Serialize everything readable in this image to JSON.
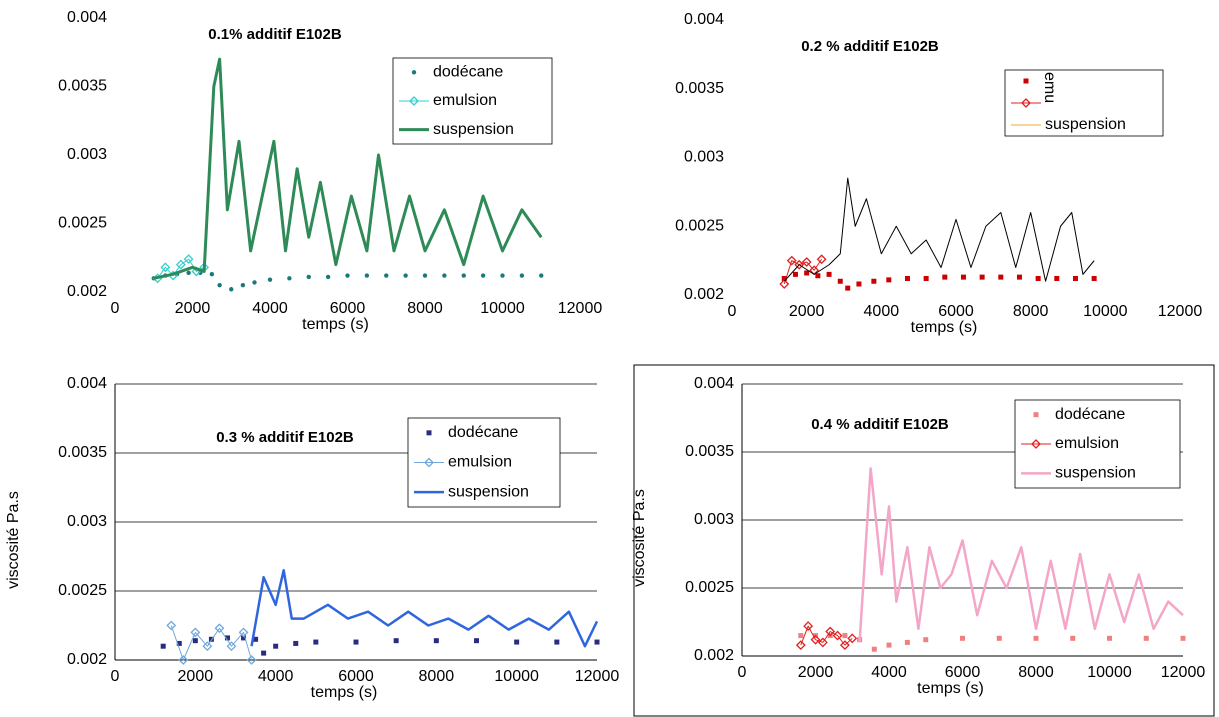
{
  "chart_data": [
    {
      "type": "line",
      "title": "0.1% additif E102B",
      "xlabel": "temps (s)",
      "xlim": [
        0,
        12000
      ],
      "xticks": [
        0,
        2000,
        4000,
        6000,
        8000,
        10000,
        12000
      ],
      "ylim": [
        0.002,
        0.004
      ],
      "yticks": [
        0.002,
        0.0025,
        0.003,
        0.0035,
        0.004
      ],
      "grid": false,
      "series": [
        {
          "name": "dodécane",
          "color": "#1a7a7a",
          "marker": "circle",
          "line": false,
          "x": [
            1000,
            1300,
            1600,
            1900,
            2200,
            2500,
            2700,
            3000,
            3300,
            3600,
            4000,
            4500,
            5000,
            5500,
            6000,
            6500,
            7000,
            7500,
            8000,
            8500,
            9000,
            9500,
            10000,
            10500,
            11000
          ],
          "values": [
            0.0021,
            0.00212,
            0.00213,
            0.00214,
            0.00214,
            0.00213,
            0.00205,
            0.00202,
            0.00205,
            0.00207,
            0.00209,
            0.0021,
            0.00211,
            0.00211,
            0.00212,
            0.00212,
            0.00212,
            0.00212,
            0.00212,
            0.00212,
            0.00212,
            0.00212,
            0.00212,
            0.00212,
            0.00212
          ]
        },
        {
          "name": "emulsion",
          "color": "#33cccc",
          "marker": "diamond",
          "line": true,
          "x": [
            1100,
            1300,
            1500,
            1700,
            1900,
            2100,
            2300
          ],
          "values": [
            0.0021,
            0.00218,
            0.00212,
            0.0022,
            0.00224,
            0.00215,
            0.00218
          ]
        },
        {
          "name": "suspension",
          "color": "#2e8b57",
          "marker": "none",
          "line": true,
          "width": 3,
          "x": [
            1000,
            1500,
            2000,
            2300,
            2550,
            2700,
            2900,
            3200,
            3500,
            3800,
            4100,
            4400,
            4700,
            5000,
            5300,
            5700,
            6100,
            6500,
            6800,
            7200,
            7600,
            8000,
            8500,
            9000,
            9500,
            10000,
            10500,
            11000
          ],
          "values": [
            0.0021,
            0.00213,
            0.00218,
            0.00215,
            0.0035,
            0.0037,
            0.0026,
            0.0031,
            0.0023,
            0.0027,
            0.0031,
            0.0023,
            0.0029,
            0.0024,
            0.0028,
            0.0022,
            0.0027,
            0.0023,
            0.003,
            0.0023,
            0.0027,
            0.0023,
            0.0026,
            0.0022,
            0.0027,
            0.0023,
            0.0026,
            0.0024
          ]
        }
      ]
    },
    {
      "type": "line",
      "title": "0.2 % additif E102B",
      "xlabel": "temps (s)",
      "legend_rotated": true,
      "xlim": [
        0,
        12000
      ],
      "xticks": [
        0,
        2000,
        4000,
        6000,
        8000,
        10000,
        12000
      ],
      "ylim": [
        0.002,
        0.004
      ],
      "yticks": [
        0.002,
        0.0025,
        0.003,
        0.0035,
        0.004
      ],
      "grid": false,
      "series": [
        {
          "name": "emu",
          "color": "#cc0000",
          "marker": "square",
          "line": false,
          "x": [
            1400,
            1700,
            2000,
            2300,
            2600,
            2900,
            3100,
            3400,
            3800,
            4200,
            4700,
            5200,
            5700,
            6200,
            6700,
            7200,
            7700,
            8200,
            8700,
            9200,
            9700
          ],
          "values": [
            0.00212,
            0.00215,
            0.00216,
            0.00214,
            0.00215,
            0.0021,
            0.00205,
            0.00208,
            0.0021,
            0.00211,
            0.00212,
            0.00212,
            0.00213,
            0.00213,
            0.00213,
            0.00213,
            0.00213,
            0.00212,
            0.00212,
            0.00212,
            0.00212
          ]
        },
        {
          "color": "#e02020",
          "marker": "diamond",
          "line": true,
          "x": [
            1400,
            1600,
            1800,
            2000,
            2200,
            2400
          ],
          "values": [
            0.00208,
            0.00225,
            0.00222,
            0.00224,
            0.00218,
            0.00226
          ]
        },
        {
          "name": "suspension",
          "color": "#000000",
          "legend_color": "#f0a830",
          "marker": "none",
          "line": true,
          "width": 1,
          "x": [
            1400,
            1800,
            2200,
            2600,
            2900,
            3100,
            3300,
            3600,
            4000,
            4400,
            4800,
            5200,
            5600,
            6000,
            6400,
            6800,
            7200,
            7600,
            8000,
            8400,
            8800,
            9100,
            9400,
            9700
          ],
          "values": [
            0.0021,
            0.00222,
            0.00215,
            0.00222,
            0.0023,
            0.00285,
            0.0025,
            0.0027,
            0.0023,
            0.0025,
            0.0023,
            0.0024,
            0.0022,
            0.00255,
            0.0022,
            0.0025,
            0.0026,
            0.0022,
            0.0026,
            0.0021,
            0.0025,
            0.0026,
            0.00215,
            0.00225
          ]
        }
      ]
    },
    {
      "type": "line",
      "title": "0.3 % additif E102B",
      "xlabel": "temps (s)",
      "ylabel": "viscosité Pa.s",
      "xlim": [
        0,
        12000
      ],
      "xticks": [
        0,
        2000,
        4000,
        6000,
        8000,
        10000,
        12000
      ],
      "ylim": [
        0.002,
        0.004
      ],
      "yticks": [
        0.002,
        0.0025,
        0.003,
        0.0035,
        0.004
      ],
      "grid": true,
      "series": [
        {
          "name": "dodécane",
          "color": "#2b2b80",
          "marker": "square",
          "line": false,
          "x": [
            1200,
            1600,
            2000,
            2400,
            2800,
            3200,
            3500,
            3700,
            4000,
            4500,
            5000,
            6000,
            7000,
            8000,
            9000,
            10000,
            11000,
            12000
          ],
          "values": [
            0.0021,
            0.00212,
            0.00214,
            0.00215,
            0.00216,
            0.00216,
            0.00215,
            0.00205,
            0.0021,
            0.00212,
            0.00213,
            0.00213,
            0.00214,
            0.00214,
            0.00214,
            0.00213,
            0.00213,
            0.00213
          ]
        },
        {
          "name": "emulsion",
          "color": "#6fa8dc",
          "marker": "diamond",
          "line": true,
          "x": [
            1400,
            1700,
            2000,
            2300,
            2600,
            2900,
            3200,
            3400
          ],
          "values": [
            0.00225,
            0.002,
            0.0022,
            0.0021,
            0.00223,
            0.0021,
            0.0022,
            0.002
          ]
        },
        {
          "name": "suspension",
          "color": "#2f66e0",
          "marker": "none",
          "line": true,
          "width": 2.5,
          "x": [
            3400,
            3700,
            4000,
            4200,
            4400,
            4700,
            5000,
            5300,
            5800,
            6300,
            6800,
            7300,
            7800,
            8300,
            8800,
            9300,
            9800,
            10300,
            10800,
            11300,
            11700,
            12000
          ],
          "values": [
            0.0021,
            0.0026,
            0.0024,
            0.00265,
            0.0023,
            0.0023,
            0.00235,
            0.0024,
            0.0023,
            0.00235,
            0.00225,
            0.00235,
            0.00225,
            0.0023,
            0.00222,
            0.00232,
            0.00222,
            0.0023,
            0.00222,
            0.00235,
            0.0021,
            0.00228
          ]
        }
      ]
    },
    {
      "type": "line",
      "title": "0.4 % additif E102B",
      "xlabel": "temps (s)",
      "ylabel": "viscosité Pa.s",
      "xlim": [
        0,
        12000
      ],
      "xticks": [
        0,
        2000,
        4000,
        6000,
        8000,
        10000,
        12000
      ],
      "ylim": [
        0.002,
        0.004
      ],
      "yticks": [
        0.002,
        0.0025,
        0.003,
        0.0035,
        0.004
      ],
      "grid": true,
      "series": [
        {
          "name": "dodécane",
          "color": "#f08080",
          "marker": "square",
          "line": false,
          "x": [
            1600,
            2000,
            2400,
            2800,
            3200,
            3600,
            4000,
            4500,
            5000,
            6000,
            7000,
            8000,
            9000,
            10000,
            11000,
            12000
          ],
          "values": [
            0.00215,
            0.00215,
            0.00215,
            0.00215,
            0.00212,
            0.00205,
            0.00208,
            0.0021,
            0.00212,
            0.00213,
            0.00213,
            0.00213,
            0.00213,
            0.00213,
            0.00213,
            0.00213
          ]
        },
        {
          "name": "emulsion",
          "color": "#e02020",
          "marker": "diamond",
          "line": true,
          "x": [
            1600,
            1800,
            2000,
            2200,
            2400,
            2600,
            2800,
            3000
          ],
          "values": [
            0.00208,
            0.00222,
            0.00212,
            0.0021,
            0.00218,
            0.00215,
            0.00208,
            0.00213
          ]
        },
        {
          "name": "suspension",
          "color": "#f4a6c8",
          "marker": "none",
          "line": true,
          "width": 2.5,
          "x": [
            3200,
            3500,
            3800,
            4000,
            4200,
            4500,
            4800,
            5100,
            5400,
            5700,
            6000,
            6400,
            6800,
            7200,
            7600,
            8000,
            8400,
            8800,
            9200,
            9600,
            10000,
            10400,
            10800,
            11200,
            11600,
            12000
          ],
          "values": [
            0.0021,
            0.00338,
            0.0026,
            0.0031,
            0.0024,
            0.0028,
            0.0022,
            0.0028,
            0.0025,
            0.0026,
            0.00285,
            0.0023,
            0.0027,
            0.0025,
            0.0028,
            0.0022,
            0.0027,
            0.0022,
            0.00275,
            0.0022,
            0.0026,
            0.00225,
            0.0026,
            0.0022,
            0.0024,
            0.0023
          ]
        }
      ]
    }
  ]
}
